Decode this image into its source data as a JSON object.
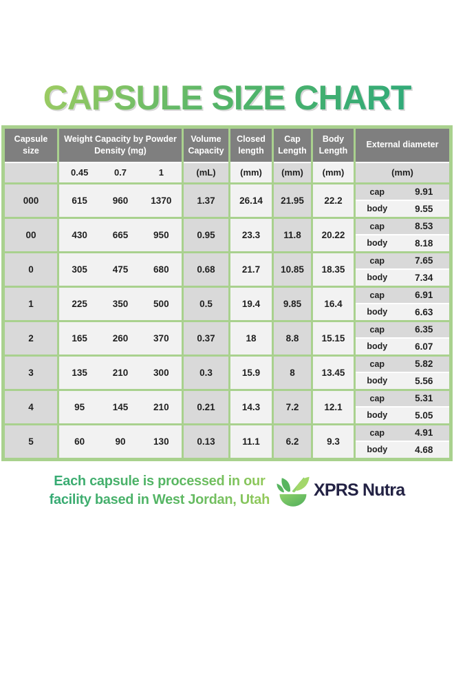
{
  "title": "CAPSULE SIZE CHART",
  "table": {
    "headers": {
      "capsule_size": "Capsule size",
      "weight_capacity": "Weight Capacity by Powder Density (mg)",
      "volume_capacity": "Volume Capacity",
      "closed_length": "Closed length",
      "cap_length": "Cap Length",
      "body_length": "Body Length",
      "external_diameter": "External diameter"
    },
    "units": {
      "densities": [
        "0.45",
        "0.7",
        "1"
      ],
      "volume": "(mL)",
      "closed": "(mm)",
      "cap": "(mm)",
      "body": "(mm)",
      "external": "(mm)"
    },
    "external_labels": {
      "cap": "cap",
      "body": "body"
    },
    "rows": [
      {
        "size": "000",
        "weights": [
          "615",
          "960",
          "1370"
        ],
        "volume": "1.37",
        "closed": "26.14",
        "cap_length": "21.95",
        "body_length": "22.2",
        "cap_diameter": "9.91",
        "body_diameter": "9.55"
      },
      {
        "size": "00",
        "weights": [
          "430",
          "665",
          "950"
        ],
        "volume": "0.95",
        "closed": "23.3",
        "cap_length": "11.8",
        "body_length": "20.22",
        "cap_diameter": "8.53",
        "body_diameter": "8.18"
      },
      {
        "size": "0",
        "weights": [
          "305",
          "475",
          "680"
        ],
        "volume": "0.68",
        "closed": "21.7",
        "cap_length": "10.85",
        "body_length": "18.35",
        "cap_diameter": "7.65",
        "body_diameter": "7.34"
      },
      {
        "size": "1",
        "weights": [
          "225",
          "350",
          "500"
        ],
        "volume": "0.5",
        "closed": "19.4",
        "cap_length": "9.85",
        "body_length": "16.4",
        "cap_diameter": "6.91",
        "body_diameter": "6.63"
      },
      {
        "size": "2",
        "weights": [
          "165",
          "260",
          "370"
        ],
        "volume": "0.37",
        "closed": "18",
        "cap_length": "8.8",
        "body_length": "15.15",
        "cap_diameter": "6.35",
        "body_diameter": "6.07"
      },
      {
        "size": "3",
        "weights": [
          "135",
          "210",
          "300"
        ],
        "volume": "0.3",
        "closed": "15.9",
        "cap_length": "8",
        "body_length": "13.45",
        "cap_diameter": "5.82",
        "body_diameter": "5.56"
      },
      {
        "size": "4",
        "weights": [
          "95",
          "145",
          "210"
        ],
        "volume": "0.21",
        "closed": "14.3",
        "cap_length": "7.2",
        "body_length": "12.1",
        "cap_diameter": "5.31",
        "body_diameter": "5.05"
      },
      {
        "size": "5",
        "weights": [
          "60",
          "90",
          "130"
        ],
        "volume": "0.13",
        "closed": "11.1",
        "cap_length": "6.2",
        "body_length": "9.3",
        "cap_diameter": "4.91",
        "body_diameter": "4.68"
      }
    ]
  },
  "footer": {
    "line1": "Each capsule is processed in our",
    "line2": "facility based in West Jordan, Utah",
    "brand": "XPRS Nutra"
  },
  "colors": {
    "border_green": "#a9d18e",
    "header_gray": "#7f7f7f",
    "cell_gray": "#d9d9d9",
    "cell_light": "#f2f2f2",
    "title_green_light": "#a8cf62",
    "title_green_dark": "#2aa87c",
    "footer_green_left": "#35aa74",
    "footer_green_right": "#95ca5a",
    "brand_navy": "#232244"
  },
  "chart_data": {
    "type": "table",
    "title": "CAPSULE SIZE CHART",
    "columns": [
      "Capsule size",
      "Weight capacity at 0.45 powder density (mg)",
      "Weight capacity at 0.7 powder density (mg)",
      "Weight capacity at 1 powder density (mg)",
      "Volume capacity (mL)",
      "Closed length (mm)",
      "Cap length (mm)",
      "Body length (mm)",
      "External diameter cap (mm)",
      "External diameter body (mm)"
    ],
    "rows": [
      [
        "000",
        615,
        960,
        1370,
        1.37,
        26.14,
        21.95,
        22.2,
        9.91,
        9.55
      ],
      [
        "00",
        430,
        665,
        950,
        0.95,
        23.3,
        11.8,
        20.22,
        8.53,
        8.18
      ],
      [
        "0",
        305,
        475,
        680,
        0.68,
        21.7,
        10.85,
        18.35,
        7.65,
        7.34
      ],
      [
        "1",
        225,
        350,
        500,
        0.5,
        19.4,
        9.85,
        16.4,
        6.91,
        6.63
      ],
      [
        "2",
        165,
        260,
        370,
        0.37,
        18,
        8.8,
        15.15,
        6.35,
        6.07
      ],
      [
        "3",
        135,
        210,
        300,
        0.3,
        15.9,
        8,
        13.45,
        5.82,
        5.56
      ],
      [
        "4",
        95,
        145,
        210,
        0.21,
        14.3,
        7.2,
        12.1,
        5.31,
        5.05
      ],
      [
        "5",
        60,
        90,
        130,
        0.13,
        11.1,
        6.2,
        9.3,
        4.91,
        4.68
      ]
    ]
  }
}
